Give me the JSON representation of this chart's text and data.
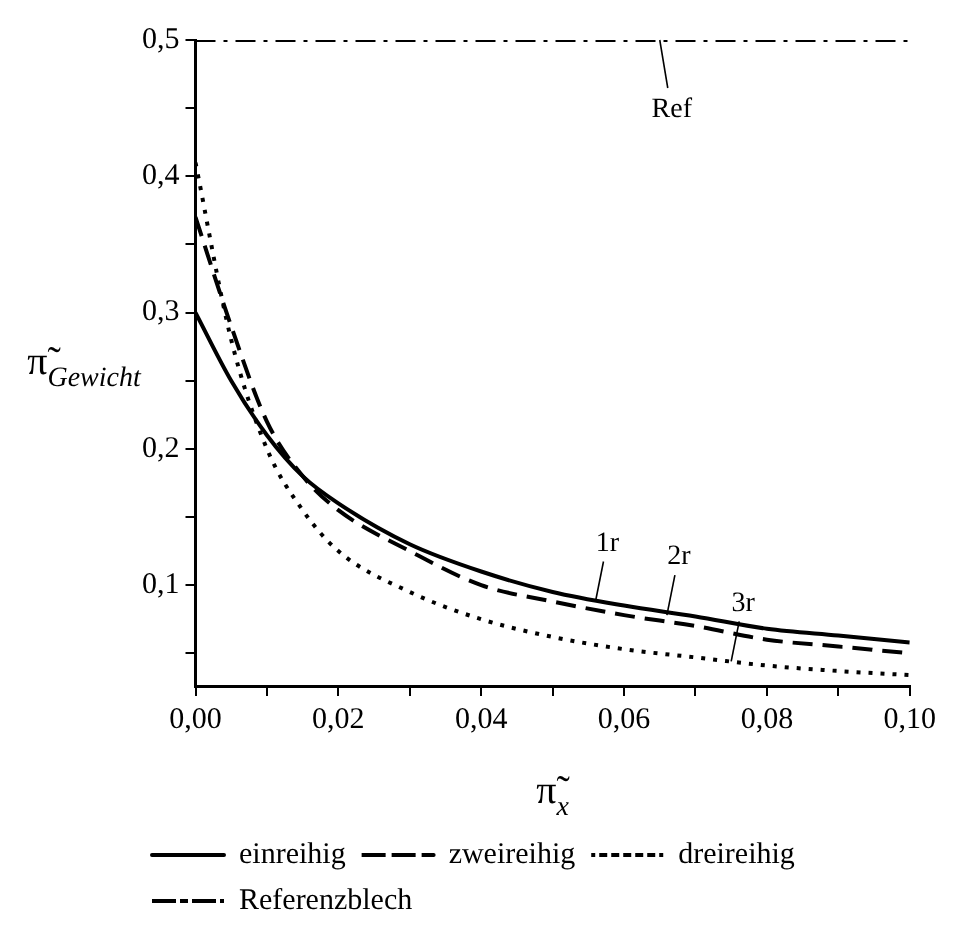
{
  "chart_data": {
    "type": "line",
    "xlabel": "π̃$_{x}$",
    "ylabel": "π̃$_{Gewicht}$",
    "xlim": [
      0,
      0.1
    ],
    "ylim": [
      0.026,
      0.5
    ],
    "xticks": [
      {
        "value": 0,
        "label": "0,00"
      },
      {
        "value": 0.01,
        "label": null
      },
      {
        "value": 0.02,
        "label": "0,02"
      },
      {
        "value": 0.03,
        "label": null
      },
      {
        "value": 0.04,
        "label": "0,04"
      },
      {
        "value": 0.05,
        "label": null
      },
      {
        "value": 0.06,
        "label": "0,06"
      },
      {
        "value": 0.07,
        "label": null
      },
      {
        "value": 0.08,
        "label": "0,08"
      },
      {
        "value": 0.09,
        "label": null
      },
      {
        "value": 0.1,
        "label": "0,10"
      }
    ],
    "yticks": [
      {
        "value": 0.05,
        "label": null
      },
      {
        "value": 0.1,
        "label": "0,1"
      },
      {
        "value": 0.15,
        "label": null
      },
      {
        "value": 0.2,
        "label": "0,2"
      },
      {
        "value": 0.25,
        "label": null
      },
      {
        "value": 0.3,
        "label": "0,3"
      },
      {
        "value": 0.35,
        "label": null
      },
      {
        "value": 0.4,
        "label": "0,4"
      },
      {
        "value": 0.45,
        "label": null
      },
      {
        "value": 0.5,
        "label": "0,5"
      }
    ],
    "grid": false,
    "legend": "bottom",
    "marker": "none",
    "series": [
      {
        "name": "einreihig",
        "color": "#000000",
        "line_style": "solid",
        "x": [
          0,
          0.005,
          0.01,
          0.015,
          0.02,
          0.03,
          0.04,
          0.05,
          0.06,
          0.07,
          0.08,
          0.09,
          0.1
        ],
        "values": [
          0.3,
          0.25,
          0.21,
          0.18,
          0.16,
          0.13,
          0.11,
          0.095,
          0.085,
          0.077,
          0.068,
          0.063,
          0.058
        ]
      },
      {
        "name": "zweireihig",
        "color": "#000000",
        "line_style": "dashed",
        "x": [
          0,
          0.005,
          0.01,
          0.015,
          0.02,
          0.03,
          0.04,
          0.05,
          0.06,
          0.07,
          0.08,
          0.09,
          0.1
        ],
        "values": [
          0.37,
          0.29,
          0.22,
          0.18,
          0.155,
          0.125,
          0.1,
          0.088,
          0.078,
          0.07,
          0.06,
          0.055,
          0.05
        ]
      },
      {
        "name": "dreireihig",
        "color": "#000000",
        "line_style": "dotted",
        "x": [
          0,
          0.005,
          0.01,
          0.015,
          0.02,
          0.03,
          0.04,
          0.05,
          0.06,
          0.07,
          0.08,
          0.09,
          0.1
        ],
        "values": [
          0.41,
          0.28,
          0.2,
          0.155,
          0.125,
          0.095,
          0.075,
          0.062,
          0.053,
          0.047,
          0.041,
          0.037,
          0.034
        ]
      },
      {
        "name": "Referenzblech",
        "color": "#000000",
        "line_style": "dashdot",
        "x": [
          0,
          0.1
        ],
        "values": [
          0.5,
          0.5
        ]
      }
    ],
    "annotations": [
      {
        "text": "Ref",
        "x": 0.065,
        "y": 0.5
      },
      {
        "text": "1r",
        "x": 0.056,
        "y": 0.088
      },
      {
        "text": "2r",
        "x": 0.066,
        "y": 0.078
      },
      {
        "text": "3r",
        "x": 0.075,
        "y": 0.044
      }
    ]
  }
}
